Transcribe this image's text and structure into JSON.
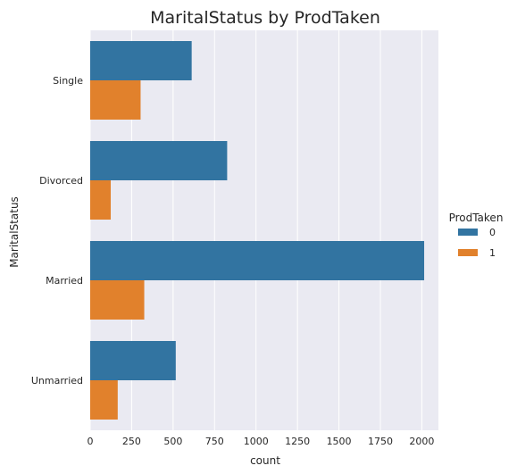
{
  "chart_data": {
    "type": "bar",
    "orientation": "horizontal",
    "title": "MaritalStatus by ProdTaken",
    "xlabel": "count",
    "ylabel": "MaritalStatus",
    "categories": [
      "Single",
      "Divorced",
      "Married",
      "Unmarried"
    ],
    "series": [
      {
        "name": "0",
        "color": "#3274a1",
        "values": [
          612,
          826,
          2014,
          516
        ]
      },
      {
        "name": "1",
        "color": "#e1812c",
        "values": [
          304,
          124,
          326,
          166
        ]
      }
    ],
    "xlim": [
      0,
      2100
    ],
    "xticks": [
      0,
      250,
      500,
      750,
      1000,
      1250,
      1500,
      1750,
      2000
    ],
    "grid": true,
    "legend": {
      "title": "ProdTaken",
      "placement": "right"
    },
    "background": "#eaeaf2",
    "gridcolor": "#ffffff"
  }
}
